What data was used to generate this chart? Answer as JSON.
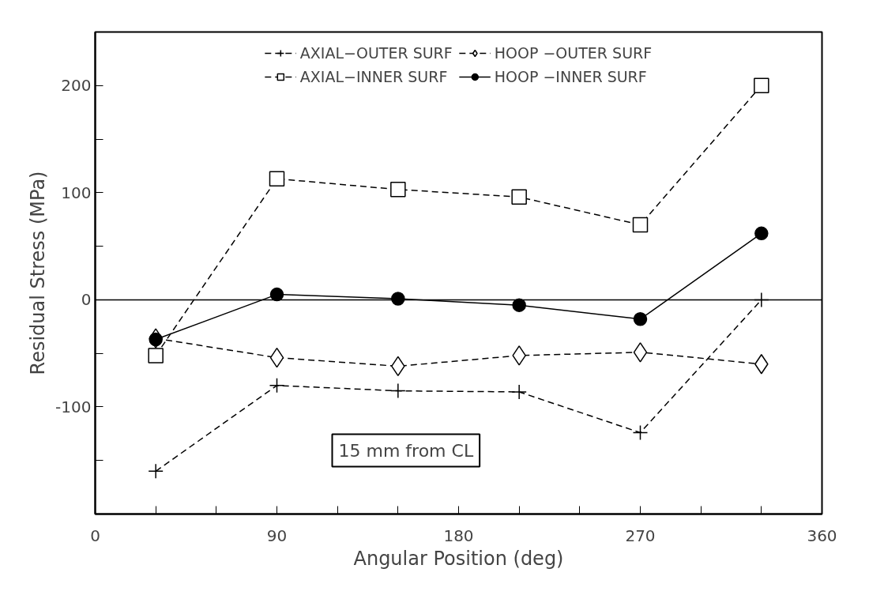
{
  "chart_data": {
    "type": "line",
    "xlabel": "Angular Position (deg)",
    "ylabel": "Residual Stress (MPa)",
    "x": [
      30,
      90,
      150,
      210,
      270,
      330
    ],
    "series": [
      {
        "name": "AXIAL−OUTER SURF",
        "color": "#000000",
        "marker": "cross",
        "line_style": "dashed",
        "values": [
          -160,
          -80,
          -85,
          -86,
          -124,
          0
        ]
      },
      {
        "name": "AXIAL−INNER SURF",
        "color": "#000000",
        "marker": "square",
        "line_style": "dashed",
        "values": [
          -52,
          113,
          103,
          96,
          70,
          200
        ]
      },
      {
        "name": "HOOP −OUTER SURF",
        "color": "#000000",
        "marker": "diamond",
        "line_style": "dashed",
        "values": [
          -36,
          -54,
          -62,
          -52,
          -49,
          -60
        ]
      },
      {
        "name": "HOOP −INNER SURF",
        "color": "#000000",
        "marker": "circle",
        "line_style": "solid",
        "values": [
          -37,
          5,
          1,
          -5,
          -18,
          62
        ]
      }
    ],
    "xlim": [
      0,
      360
    ],
    "ylim": [
      -200,
      250
    ],
    "xticks": [
      0,
      {
        "value": 30,
        "label": null
      },
      {
        "value": 60,
        "label": null
      },
      90,
      {
        "value": 120,
        "label": null
      },
      {
        "value": 150,
        "label": null
      },
      180,
      {
        "value": 210,
        "label": null
      },
      {
        "value": 240,
        "label": null
      },
      270,
      {
        "value": 300,
        "label": null
      },
      {
        "value": 330,
        "label": null
      },
      360
    ],
    "yticks": [
      {
        "value": -200,
        "label": null
      },
      {
        "value": -150,
        "label": null
      },
      -100,
      {
        "value": -50,
        "label": null
      },
      0,
      {
        "value": 50,
        "label": null
      },
      100,
      {
        "value": 150,
        "label": null
      },
      200
    ],
    "ref_lines": [
      {
        "axis": "y",
        "value": 0,
        "label": null
      }
    ],
    "annotations": [
      "15 mm from CL"
    ],
    "grid": false,
    "legend": "top"
  }
}
